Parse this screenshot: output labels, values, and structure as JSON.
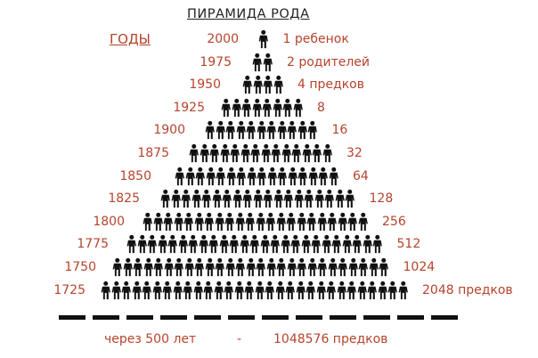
{
  "title": "ПИРАМИДА РОДА",
  "years_header": "ГОДЫ",
  "colors": {
    "text_accent": "#b5442c",
    "figure": "#111111",
    "title": "#222222"
  },
  "figure_icon": "person-silhouette-icon",
  "rows": [
    {
      "year": "2000",
      "label": "1 ребенок"
    },
    {
      "year": "1975",
      "label": "2 родителей"
    },
    {
      "year": "1950",
      "label": "4 предков"
    },
    {
      "year": "1925",
      "label": "8"
    },
    {
      "year": "1900",
      "label": "16"
    },
    {
      "year": "1875",
      "label": "32"
    },
    {
      "year": "1850",
      "label": "64"
    },
    {
      "year": "1825",
      "label": "128"
    },
    {
      "year": "1800",
      "label": "256"
    },
    {
      "year": "1775",
      "label": "512"
    },
    {
      "year": "1750",
      "label": "1024"
    },
    {
      "year": "1725",
      "label": "2048 предков"
    }
  ],
  "footer": {
    "span": "через 500 лет",
    "separator": "-",
    "total": "1048576 предков"
  }
}
